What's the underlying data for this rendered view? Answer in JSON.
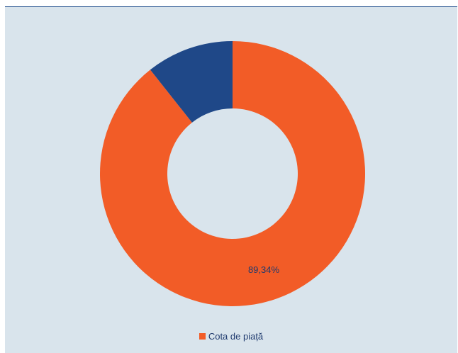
{
  "chart_data": {
    "type": "pie",
    "donut": true,
    "series": [
      {
        "name": "Cota de piață",
        "values": [
          89.34,
          10.66
        ],
        "colors": [
          "#f25c27",
          "#1f4888"
        ]
      }
    ],
    "data_labels": [
      "89,34%",
      ""
    ],
    "legend": {
      "placement": "bottom",
      "label": "Cota de piață",
      "color": "#f25c27"
    }
  }
}
